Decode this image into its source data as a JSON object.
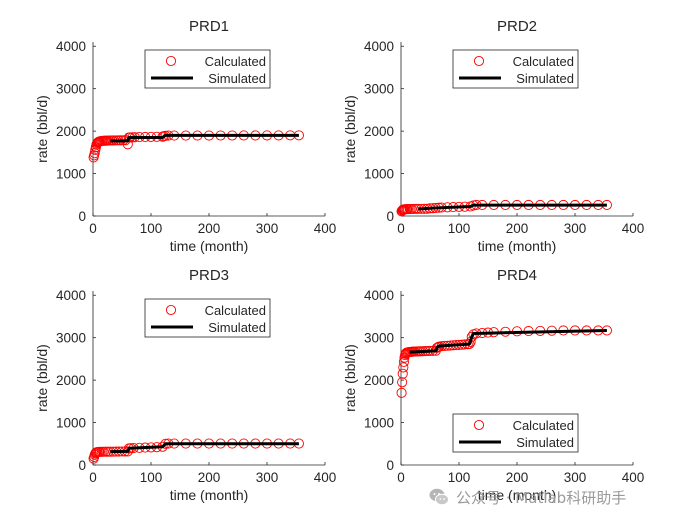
{
  "chart_data": [
    {
      "type": "scatter",
      "title": "PRD1",
      "xlabel": "time (month)",
      "ylabel": "rate (bbl/d)",
      "xlim": [
        0,
        400
      ],
      "ylim": [
        0,
        4100
      ],
      "xticks": [
        0,
        100,
        200,
        300,
        400
      ],
      "yticks": [
        0,
        1000,
        2000,
        3000,
        4000
      ],
      "legend_position": "top-center",
      "series": [
        {
          "name": "Calculated",
          "style": "open-circle",
          "color": "#ff0000",
          "x": [
            1,
            2,
            3,
            4,
            5,
            6,
            7,
            8,
            9,
            10,
            11,
            12,
            14,
            16,
            18,
            20,
            22,
            24,
            27,
            30,
            33,
            36,
            40,
            44,
            48,
            52,
            56,
            60,
            62,
            64,
            68,
            72,
            80,
            90,
            100,
            110,
            120,
            122,
            125,
            130,
            140,
            160,
            180,
            200,
            220,
            240,
            260,
            280,
            300,
            320,
            340,
            355
          ],
          "y": [
            1380,
            1430,
            1480,
            1560,
            1620,
            1680,
            1710,
            1730,
            1740,
            1750,
            1755,
            1760,
            1765,
            1770,
            1772,
            1774,
            1775,
            1776,
            1778,
            1779,
            1780,
            1781,
            1782,
            1783,
            1784,
            1785,
            1786,
            1690,
            1850,
            1852,
            1855,
            1858,
            1860,
            1862,
            1864,
            1866,
            1868,
            1880,
            1890,
            1895,
            1895,
            1895,
            1896,
            1896,
            1897,
            1897,
            1898,
            1898,
            1899,
            1899,
            1900,
            1900
          ]
        },
        {
          "name": "Simulated",
          "style": "line",
          "color": "#000000",
          "x": [
            30,
            60,
            62,
            120,
            125,
            355
          ],
          "y": [
            1770,
            1770,
            1850,
            1850,
            1900,
            1900
          ]
        }
      ]
    },
    {
      "type": "scatter",
      "title": "PRD2",
      "xlabel": "time (month)",
      "ylabel": "rate (bbl/d)",
      "xlim": [
        0,
        400
      ],
      "ylim": [
        0,
        4100
      ],
      "xticks": [
        0,
        100,
        200,
        300,
        400
      ],
      "yticks": [
        0,
        1000,
        2000,
        3000,
        4000
      ],
      "legend_position": "top-center",
      "series": [
        {
          "name": "Calculated",
          "style": "open-circle",
          "color": "#ff0000",
          "x": [
            1,
            2,
            3,
            4,
            5,
            6,
            8,
            10,
            12,
            15,
            18,
            22,
            26,
            30,
            35,
            40,
            45,
            50,
            55,
            60,
            65,
            70,
            80,
            90,
            100,
            110,
            120,
            125,
            130,
            140,
            160,
            180,
            200,
            220,
            240,
            260,
            280,
            300,
            320,
            340,
            355
          ],
          "y": [
            110,
            130,
            145,
            150,
            155,
            158,
            160,
            162,
            163,
            164,
            165,
            166,
            167,
            168,
            168,
            169,
            170,
            180,
            185,
            190,
            195,
            200,
            205,
            210,
            215,
            220,
            225,
            250,
            260,
            260,
            260,
            260,
            260,
            260,
            260,
            260,
            260,
            260,
            260,
            260,
            260
          ]
        },
        {
          "name": "Simulated",
          "style": "line",
          "color": "#000000",
          "x": [
            30,
            60,
            120,
            125,
            355
          ],
          "y": [
            165,
            190,
            225,
            255,
            255
          ]
        }
      ]
    },
    {
      "type": "scatter",
      "title": "PRD3",
      "xlabel": "time (month)",
      "ylabel": "rate (bbl/d)",
      "xlim": [
        0,
        400
      ],
      "ylim": [
        0,
        4100
      ],
      "xticks": [
        0,
        100,
        200,
        300,
        400
      ],
      "yticks": [
        0,
        1000,
        2000,
        3000,
        4000
      ],
      "legend_position": "top-center",
      "series": [
        {
          "name": "Calculated",
          "style": "open-circle",
          "color": "#ff0000",
          "x": [
            1,
            2,
            3,
            4,
            5,
            6,
            8,
            10,
            12,
            15,
            18,
            22,
            26,
            30,
            35,
            40,
            45,
            50,
            55,
            60,
            62,
            65,
            70,
            80,
            90,
            100,
            110,
            120,
            125,
            130,
            140,
            160,
            180,
            200,
            220,
            240,
            260,
            280,
            300,
            320,
            340,
            355
          ],
          "y": [
            150,
            190,
            240,
            270,
            290,
            300,
            305,
            308,
            310,
            311,
            312,
            313,
            313,
            314,
            315,
            316,
            317,
            318,
            319,
            320,
            390,
            395,
            400,
            405,
            410,
            415,
            420,
            430,
            500,
            505,
            505,
            505,
            505,
            505,
            505,
            505,
            505,
            505,
            505,
            505,
            505,
            505
          ]
        },
        {
          "name": "Simulated",
          "style": "line",
          "color": "#000000",
          "x": [
            30,
            60,
            62,
            120,
            125,
            355
          ],
          "y": [
            315,
            320,
            395,
            430,
            500,
            500
          ]
        }
      ]
    },
    {
      "type": "scatter",
      "title": "PRD4",
      "xlabel": "time (month)",
      "ylabel": "rate (bbl/d)",
      "xlim": [
        0,
        400
      ],
      "ylim": [
        0,
        4100
      ],
      "xticks": [
        0,
        100,
        200,
        300,
        400
      ],
      "yticks": [
        0,
        1000,
        2000,
        3000,
        4000
      ],
      "legend_position": "bottom-right",
      "series": [
        {
          "name": "Calculated",
          "style": "open-circle",
          "color": "#ff0000",
          "x": [
            1,
            2,
            3,
            4,
            5,
            6,
            7,
            8,
            9,
            10,
            12,
            14,
            16,
            18,
            20,
            22,
            25,
            28,
            31,
            34,
            38,
            42,
            46,
            50,
            55,
            60,
            62,
            64,
            66,
            70,
            75,
            80,
            85,
            90,
            95,
            100,
            105,
            110,
            115,
            118,
            120,
            122,
            125,
            130,
            140,
            150,
            160,
            180,
            200,
            220,
            240,
            260,
            280,
            300,
            320,
            340,
            355
          ],
          "y": [
            1700,
            1950,
            2150,
            2300,
            2430,
            2530,
            2590,
            2620,
            2640,
            2650,
            2655,
            2660,
            2665,
            2668,
            2670,
            2672,
            2674,
            2676,
            2678,
            2680,
            2682,
            2684,
            2686,
            2688,
            2690,
            2692,
            2760,
            2780,
            2790,
            2800,
            2805,
            2810,
            2815,
            2820,
            2825,
            2830,
            2835,
            2840,
            2845,
            2850,
            2900,
            3020,
            3080,
            3100,
            3110,
            3120,
            3130,
            3140,
            3150,
            3155,
            3160,
            3165,
            3170,
            3170,
            3170,
            3170,
            3170
          ]
        },
        {
          "name": "Simulated",
          "style": "line",
          "color": "#000000",
          "x": [
            15,
            60,
            62,
            65,
            118,
            122,
            125,
            355
          ],
          "y": [
            2660,
            2690,
            2760,
            2800,
            2850,
            3020,
            3100,
            3170
          ]
        }
      ]
    }
  ],
  "watermark": {
    "text": "公众号 · Matlab科研助手",
    "icon": "wechat-icon",
    "color": "#9a9a9a"
  }
}
